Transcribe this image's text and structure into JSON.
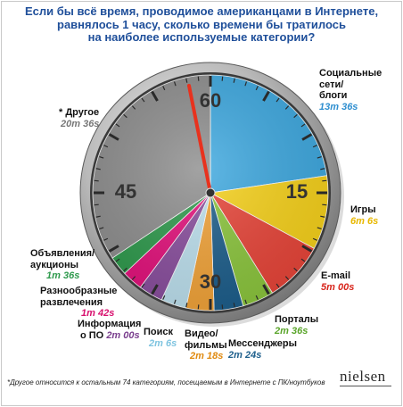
{
  "title": {
    "line1": "Если бы всё время, проводимое американцами в Интернете,",
    "line2": "равнялось 1 часу, сколько времени бы тратилось",
    "line3": "на наиболее используемые категории?"
  },
  "chart_data": {
    "type": "pie",
    "title": "Если бы всё время, проводимое американцами в Интернете, равнялось 1 часу, сколько времени бы тратилось на наиболее используемые категории?",
    "unit": "minutes",
    "total": 60,
    "dial_labels": [
      "60",
      "15",
      "30",
      "45"
    ],
    "slices": [
      {
        "key": "social",
        "name": "Социальные сети/ блоги",
        "display": "13m 36s",
        "value": 13.6,
        "color": "#3fa9e0"
      },
      {
        "key": "games",
        "name": "Игры",
        "display": "6m 6s",
        "value": 6.1,
        "color": "#f7d21c"
      },
      {
        "key": "email",
        "name": "E-mail",
        "display": "5m 00s",
        "value": 5.0,
        "color": "#e8463a"
      },
      {
        "key": "portals",
        "name": "Порталы",
        "display": "2m 36s",
        "value": 2.6,
        "color": "#8cc63e"
      },
      {
        "key": "im",
        "name": "Мессенджеры",
        "display": "2m 24s",
        "value": 2.4,
        "color": "#1e5f8c"
      },
      {
        "key": "video",
        "name": "Видео/ фильмы",
        "display": "2m 18s",
        "value": 2.3,
        "color": "#f2a43a"
      },
      {
        "key": "search",
        "name": "Поиск",
        "display": "2m 6s",
        "value": 2.1,
        "color": "#bde0ee"
      },
      {
        "key": "software",
        "name": "Информация о ПО",
        "display": "2m 00s",
        "value": 2.0,
        "color": "#8a4f9e"
      },
      {
        "key": "entertainment",
        "name": "Разнообразные развлечения",
        "display": "1m 42s",
        "value": 1.7,
        "color": "#e3127c"
      },
      {
        "key": "classifieds",
        "name": "Объявления/ аукционы",
        "display": "1m 36s",
        "value": 1.6,
        "color": "#2f9a4d"
      },
      {
        "key": "other",
        "name": "* Другое",
        "display": "20m 36s",
        "value": 20.6,
        "color": "#8e8e8e"
      }
    ]
  },
  "labels": {
    "social": {
      "l1": "Социальные",
      "l2": "сети/",
      "l3": "блоги",
      "val": "13m 36s",
      "val_color": "#2f8fd0"
    },
    "games": {
      "l1": "Игры",
      "val": "6m 6s",
      "val_color": "#e8b800"
    },
    "email": {
      "l1": "E-mail",
      "val": "5m 00s",
      "val_color": "#d8261c"
    },
    "portals": {
      "l1": "Порталы",
      "val": "2m 36s",
      "val_color": "#5aa52a"
    },
    "im": {
      "l1": "Мессенджеры",
      "val": "2m 24s",
      "val_color": "#1e5f8c"
    },
    "video": {
      "l1": "Видео/",
      "l2": "фильмы",
      "val": "2m 18s",
      "val_color": "#e08a10"
    },
    "search": {
      "l1": "Поиск",
      "val": "2m 6s",
      "val_color": "#7fc4e0"
    },
    "software": {
      "l1": "Информация",
      "l2": "о ПО",
      "val": "2m 00s",
      "val_color": "#7a3f8e"
    },
    "entertainment": {
      "l1": "Разнообразные",
      "l2": "развлечения",
      "val": "1m 42s",
      "val_color": "#d8106e"
    },
    "classifieds": {
      "l1": "Объявления/",
      "l2": "аукционы",
      "val": "1m 36s",
      "val_color": "#2f9a4d"
    },
    "other": {
      "l1": "* Другое",
      "val": "20m 36s",
      "val_color": "#777777"
    }
  },
  "footnote": "*Другое относится к остальным 74 категориям, посещаемым в Интернете с ПК/ноутбуков",
  "logo": "nielsen"
}
